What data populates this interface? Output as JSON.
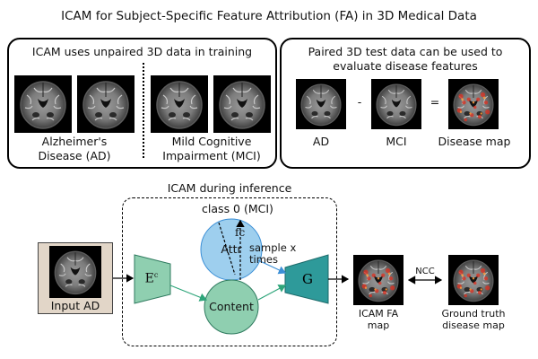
{
  "title": "ICAM for Subject-Specific Feature Attribution (FA) in 3D Medical Data",
  "training_panel": {
    "title": "ICAM uses unpaired 3D data in training",
    "left_label": "Alzheimer's Disease (AD)",
    "right_label": "Mild Cognitive Impairment (MCI)"
  },
  "test_panel": {
    "title": "Paired 3D test data can be used to evaluate disease features",
    "minus": "-",
    "equals": "=",
    "labels": [
      "AD",
      "MCI",
      "Disease map"
    ]
  },
  "inference": {
    "title": "ICAM during inference",
    "input_label": "Input AD",
    "encoder": "E",
    "encoder_sup": "c",
    "class_label": "class 0 (MCI)",
    "fc_label": "fc",
    "attr_label": "Attr",
    "content_label": "Content",
    "sample_label": "sample x times",
    "generator": "G",
    "icam_map_label": "ICAM FA map",
    "ncc_label": "NCC",
    "gt_label": "Ground truth disease map"
  },
  "colors": {
    "encoder": "#8fcfb0",
    "generator": "#2e9a9a",
    "attr": "#9ecfee",
    "content": "#8fcfb0",
    "input_bg": "#e2d6c8",
    "arrow_green": "#2ea57a",
    "arrow_blue": "#3b8fd6",
    "heat": "#e03020"
  }
}
